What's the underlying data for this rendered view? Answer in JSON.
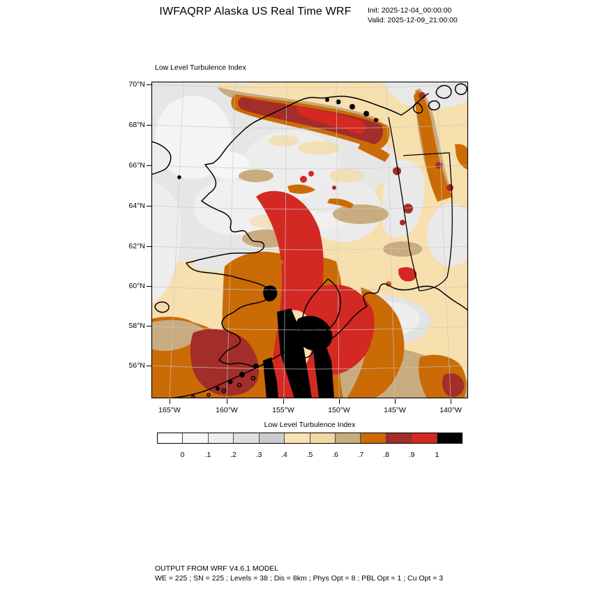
{
  "header": {
    "title": "IWFAQRP Alaska US Real Time WRF",
    "init_label": "Init: 2025-12-04_00:00:00",
    "valid_label": "Valid: 2025-12-09_21:00:00"
  },
  "map": {
    "title": "Low Level Turbulence Index",
    "y_axis_labels": [
      "70°N",
      "68°N",
      "66°N",
      "64°N",
      "62°N",
      "60°N",
      "58°N",
      "56°N"
    ],
    "x_axis_labels": [
      "165°W",
      "160°W",
      "155°W",
      "150°W",
      "145°W",
      "140°W"
    ]
  },
  "colorbar": {
    "title": "Low Level Turbulence Index",
    "tick_labels": [
      "0",
      ".1",
      ".2",
      ".3",
      ".4",
      ".5",
      ".6",
      ".7",
      ".8",
      ".9",
      "1"
    ],
    "cell_colors": [
      "#ffffff",
      "#f7f7f7",
      "#eeeeee",
      "#e0e0e0",
      "#cbcbcb",
      "#f8e2b4",
      "#f2d8a0",
      "#c9ab80",
      "#ca6b06",
      "#a32d28",
      "#d42823",
      "#000000"
    ]
  },
  "footer": {
    "line1": "OUTPUT FROM WRF V4.6.1 MODEL",
    "line2": "WE = 225 ; SN = 225 ; Levels = 38 ; Dis = 8km ; Phys Opt = 8 ; PBL Opt = 1 ; Cu Opt = 3"
  }
}
